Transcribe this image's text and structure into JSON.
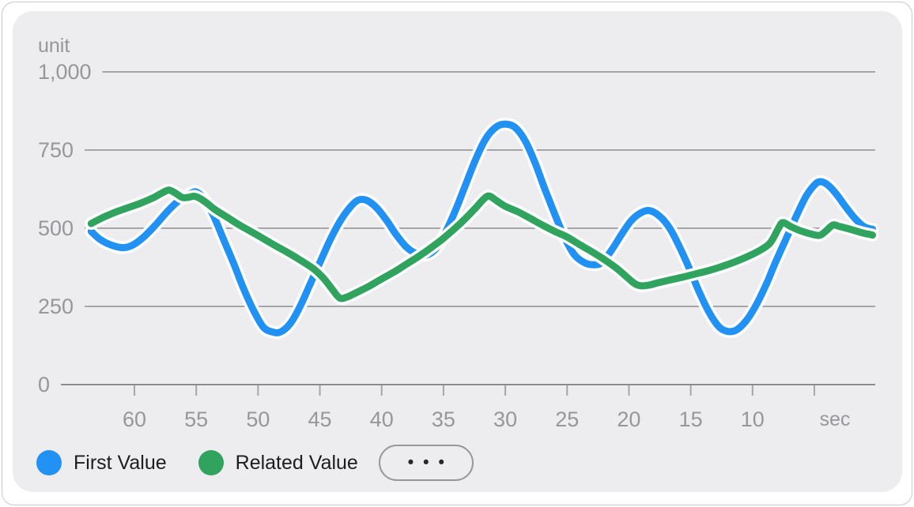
{
  "chart_data": {
    "type": "line",
    "y_axis": {
      "unit_label": "unit",
      "range": [
        0,
        1000
      ],
      "ticks": [
        {
          "value": 1000,
          "label": "1,000"
        },
        {
          "value": 750,
          "label": "750"
        },
        {
          "value": 500,
          "label": "500"
        },
        {
          "value": 250,
          "label": "250"
        },
        {
          "value": 0,
          "label": "0"
        }
      ]
    },
    "x_axis": {
      "unit_label": "sec",
      "tick_seconds": [
        60,
        55,
        50,
        45,
        40,
        35,
        30,
        25,
        20,
        15,
        10,
        5
      ],
      "tick_labels": [
        "60",
        "55",
        "50",
        "45",
        "40",
        "35",
        "30",
        "25",
        "20",
        "15",
        "10",
        ""
      ]
    },
    "series": [
      {
        "name": "First Value",
        "color": "#2191f4",
        "points": [
          [
            63.5,
            490
          ],
          [
            62.8,
            465
          ],
          [
            62,
            448
          ],
          [
            61,
            438
          ],
          [
            60.2,
            445
          ],
          [
            59.3,
            470
          ],
          [
            58.3,
            510
          ],
          [
            57.3,
            555
          ],
          [
            56.3,
            592
          ],
          [
            55.5,
            610
          ],
          [
            55,
            616
          ],
          [
            54.4,
            595
          ],
          [
            53.6,
            540
          ],
          [
            52.8,
            465
          ],
          [
            52,
            390
          ],
          [
            51.2,
            310
          ],
          [
            50.4,
            240
          ],
          [
            49.6,
            185
          ],
          [
            48.9,
            169
          ],
          [
            48.2,
            168
          ],
          [
            47.4,
            195
          ],
          [
            46.6,
            250
          ],
          [
            45.8,
            320
          ],
          [
            45,
            390
          ],
          [
            44.2,
            460
          ],
          [
            43.4,
            520
          ],
          [
            42.6,
            565
          ],
          [
            41.9,
            590
          ],
          [
            41.2,
            589
          ],
          [
            40.4,
            565
          ],
          [
            39.6,
            525
          ],
          [
            38.8,
            478
          ],
          [
            38,
            440
          ],
          [
            37.2,
            419
          ],
          [
            36.4,
            414
          ],
          [
            35.6,
            435
          ],
          [
            34.8,
            490
          ],
          [
            34,
            560
          ],
          [
            33.2,
            640
          ],
          [
            32.4,
            720
          ],
          [
            31.6,
            785
          ],
          [
            30.8,
            822
          ],
          [
            30,
            833
          ],
          [
            29.2,
            822
          ],
          [
            28.4,
            780
          ],
          [
            27.6,
            710
          ],
          [
            26.8,
            625
          ],
          [
            26,
            545
          ],
          [
            25.2,
            470
          ],
          [
            24.4,
            415
          ],
          [
            23.6,
            390
          ],
          [
            22.9,
            383
          ],
          [
            22.2,
            390
          ],
          [
            21.4,
            430
          ],
          [
            20.6,
            480
          ],
          [
            19.8,
            525
          ],
          [
            19,
            550
          ],
          [
            18.3,
            556
          ],
          [
            17.5,
            538
          ],
          [
            16.7,
            500
          ],
          [
            15.9,
            440
          ],
          [
            15.1,
            370
          ],
          [
            14.3,
            295
          ],
          [
            13.5,
            230
          ],
          [
            12.7,
            184
          ],
          [
            12,
            170
          ],
          [
            11.3,
            175
          ],
          [
            10.5,
            205
          ],
          [
            9.7,
            255
          ],
          [
            8.9,
            320
          ],
          [
            8.1,
            395
          ],
          [
            7.3,
            465
          ],
          [
            6.5,
            535
          ],
          [
            5.7,
            600
          ],
          [
            5,
            638
          ],
          [
            4.5,
            649
          ],
          [
            3.9,
            638
          ],
          [
            3.2,
            608
          ],
          [
            2.5,
            570
          ],
          [
            1.8,
            535
          ],
          [
            1.1,
            508
          ],
          [
            0.5,
            498
          ],
          [
            0.3,
            497
          ]
        ]
      },
      {
        "name": "Related Value",
        "color": "#30a35e",
        "points": [
          [
            63.5,
            515
          ],
          [
            62.5,
            535
          ],
          [
            61.5,
            552
          ],
          [
            60.5,
            566
          ],
          [
            59.5,
            580
          ],
          [
            58.5,
            597
          ],
          [
            57.8,
            612
          ],
          [
            57.2,
            622
          ],
          [
            56.6,
            610
          ],
          [
            56.1,
            598
          ],
          [
            55.6,
            599
          ],
          [
            55.1,
            602
          ],
          [
            54.4,
            588
          ],
          [
            53.5,
            560
          ],
          [
            52.5,
            535
          ],
          [
            51.5,
            510
          ],
          [
            50.5,
            488
          ],
          [
            49.5,
            465
          ],
          [
            48.5,
            442
          ],
          [
            47.5,
            420
          ],
          [
            46.5,
            396
          ],
          [
            45.5,
            370
          ],
          [
            44.7,
            340
          ],
          [
            44,
            305
          ],
          [
            43.4,
            277
          ],
          [
            42.8,
            280
          ],
          [
            42,
            295
          ],
          [
            41,
            315
          ],
          [
            40,
            338
          ],
          [
            39,
            360
          ],
          [
            38,
            385
          ],
          [
            37,
            410
          ],
          [
            36,
            438
          ],
          [
            35,
            468
          ],
          [
            34,
            502
          ],
          [
            33.2,
            532
          ],
          [
            32.4,
            565
          ],
          [
            31.7,
            595
          ],
          [
            31.3,
            603
          ],
          [
            30.7,
            588
          ],
          [
            30,
            570
          ],
          [
            29,
            553
          ],
          [
            28,
            532
          ],
          [
            27,
            510
          ],
          [
            26,
            490
          ],
          [
            25,
            472
          ],
          [
            24,
            448
          ],
          [
            23,
            425
          ],
          [
            22,
            400
          ],
          [
            21,
            372
          ],
          [
            20.2,
            345
          ],
          [
            19.5,
            322
          ],
          [
            19,
            316
          ],
          [
            18.4,
            318
          ],
          [
            17.6,
            326
          ],
          [
            16.6,
            335
          ],
          [
            15.6,
            344
          ],
          [
            14.6,
            354
          ],
          [
            13.6,
            364
          ],
          [
            12.6,
            376
          ],
          [
            11.6,
            390
          ],
          [
            10.6,
            406
          ],
          [
            9.6,
            425
          ],
          [
            8.6,
            452
          ],
          [
            7.9,
            500
          ],
          [
            7.55,
            518
          ],
          [
            6.9,
            505
          ],
          [
            6.2,
            493
          ],
          [
            5.4,
            483
          ],
          [
            4.6,
            477
          ],
          [
            4.1,
            490
          ],
          [
            3.5,
            510
          ],
          [
            3,
            506
          ],
          [
            2.4,
            500
          ],
          [
            1.7,
            492
          ],
          [
            1,
            484
          ],
          [
            0.5,
            480
          ],
          [
            0.3,
            478
          ]
        ]
      }
    ]
  },
  "legend": {
    "items": [
      "First Value",
      "Related Value"
    ],
    "more_button_label": "•••"
  },
  "style": {
    "grid_color": "#a6a6aa",
    "baseline_color": "#8b8b90",
    "axis_text_color": "#96969b",
    "halo_color": "#ffffff"
  }
}
